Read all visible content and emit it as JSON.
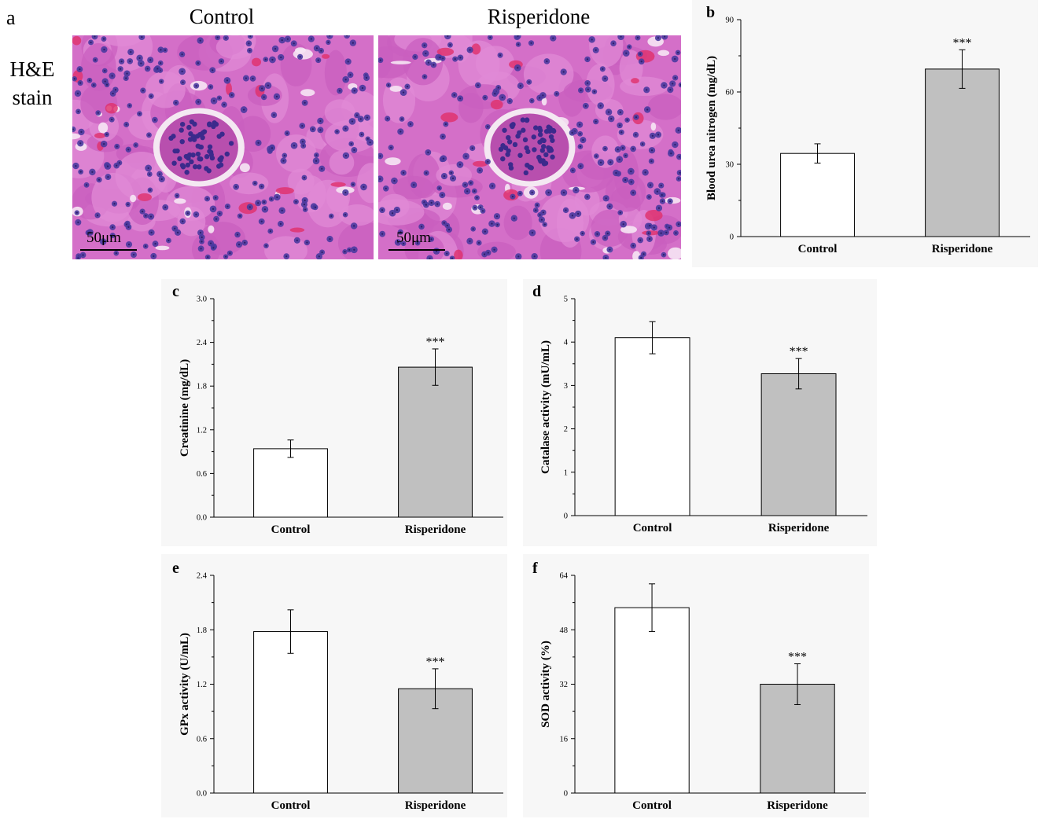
{
  "panel_a": {
    "letter": "a",
    "row_label_line1": "H&E",
    "row_label_line2": "stain",
    "titles": [
      "Control",
      "Risperidone"
    ],
    "scale_bar": "50μm"
  },
  "chart_data": [
    {
      "id": "b",
      "letter": "b",
      "type": "bar",
      "categories": [
        "Control",
        "Risperidone"
      ],
      "values": [
        34.5,
        69.5
      ],
      "errors": [
        4,
        8
      ],
      "significance": [
        "",
        "***"
      ],
      "ylabel": "Blood urea nitrogen (mg/dL)",
      "ylim": [
        0,
        90
      ],
      "yticks": [
        "0",
        "30",
        "60",
        "90"
      ],
      "ytick_values": [
        0,
        30,
        60,
        90
      ],
      "bar_colors": [
        "#ffffff",
        "#c0c0c0"
      ]
    },
    {
      "id": "c",
      "letter": "c",
      "type": "bar",
      "categories": [
        "Control",
        "Risperidone"
      ],
      "values": [
        0.94,
        2.06
      ],
      "errors": [
        0.12,
        0.25
      ],
      "significance": [
        "",
        "***"
      ],
      "ylabel": "Creatinine (mg/dL)",
      "ylim": [
        0,
        3.0
      ],
      "yticks": [
        "0.0",
        "0.6",
        "1.2",
        "1.8",
        "2.4",
        "3.0"
      ],
      "ytick_values": [
        0,
        0.6,
        1.2,
        1.8,
        2.4,
        3.0
      ],
      "bar_colors": [
        "#ffffff",
        "#c0c0c0"
      ]
    },
    {
      "id": "d",
      "letter": "d",
      "type": "bar",
      "categories": [
        "Control",
        "Risperidone"
      ],
      "values": [
        4.1,
        3.27
      ],
      "errors": [
        0.37,
        0.35
      ],
      "significance": [
        "",
        "***"
      ],
      "ylabel": "Catalase activity (mU/mL)",
      "ylim": [
        0,
        5
      ],
      "yticks": [
        "0",
        "1",
        "2",
        "3",
        "4",
        "5"
      ],
      "ytick_values": [
        0,
        1,
        2,
        3,
        4,
        5
      ],
      "bar_colors": [
        "#ffffff",
        "#c0c0c0"
      ]
    },
    {
      "id": "e",
      "letter": "e",
      "type": "bar",
      "categories": [
        "Control",
        "Risperidone"
      ],
      "values": [
        1.78,
        1.15
      ],
      "errors": [
        0.24,
        0.22
      ],
      "significance": [
        "",
        "***"
      ],
      "ylabel": "GPx activity (U/mL)",
      "ylim": [
        0,
        2.4
      ],
      "yticks": [
        "0.0",
        "0.6",
        "1.2",
        "1.8",
        "2.4"
      ],
      "ytick_values": [
        0,
        0.6,
        1.2,
        1.8,
        2.4
      ],
      "bar_colors": [
        "#ffffff",
        "#c0c0c0"
      ]
    },
    {
      "id": "f",
      "letter": "f",
      "type": "bar",
      "categories": [
        "Control",
        "Risperidone"
      ],
      "values": [
        54.5,
        32
      ],
      "errors": [
        7,
        6
      ],
      "significance": [
        "",
        "***"
      ],
      "ylabel": "SOD activity (%)",
      "ylim": [
        0,
        64
      ],
      "yticks": [
        "0",
        "16",
        "32",
        "48",
        "64"
      ],
      "ytick_values": [
        0,
        16,
        32,
        48,
        64
      ],
      "bar_colors": [
        "#ffffff",
        "#c0c0c0"
      ]
    }
  ]
}
